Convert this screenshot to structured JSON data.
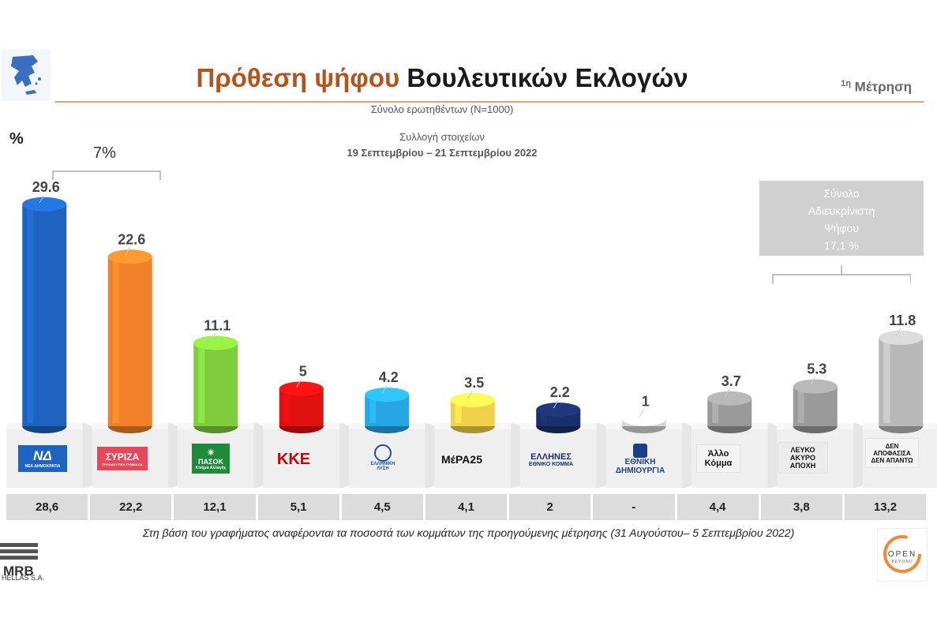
{
  "header": {
    "title_part1": "Πρόθεση ψήφου",
    "title_part2": "Βουλευτικών Εκλογών",
    "measure_sup": "1η",
    "measure_text": "Μέτρηση",
    "subtitle_sample": "Σύνολο ερωτηθέντων (N=1000)",
    "subtitle_collection": "Συλλογή στοιχείων",
    "subtitle_dates": "19 Σεπτεμβρίου – 21 Σεπτεμβρίου 2022"
  },
  "annotations": {
    "percent_symbol": "%",
    "gap_label": "7%",
    "undecided_line1": "Σύνολο",
    "undecided_line2": "Αδιευκρίνιστη",
    "undecided_line3": "Ψήφου",
    "undecided_line4": "17,1 %"
  },
  "chart_data": {
    "type": "bar",
    "categories": [
      "ΝΔ",
      "ΣΥΡΙΖΑ",
      "ΠΑΣΟΚ",
      "ΚΚΕ",
      "ΕΛΛΗΝΙΚΗ ΛΥΣΗ",
      "ΜέΡΑ25",
      "ΕΛΛΗΝΕΣ",
      "ΕΘΝΙΚΗ ΔΗΜΙΟΥΡΓΙΑ",
      "Άλλο Κόμμα",
      "ΛΕΥΚΟ ΑΚΥΡΟ ΑΠΟΧΗ",
      "ΔΕΝ ΑΠΟΦΑΣΙΣΑ ΔΕΝ ΑΠΑΝΤΩ"
    ],
    "values": [
      29.6,
      22.6,
      11.1,
      5,
      4.2,
      3.5,
      2.2,
      1,
      3.7,
      5.3,
      11.8
    ],
    "value_labels": [
      "29.6",
      "22.6",
      "11.1",
      "5",
      "4.2",
      "3.5",
      "2.2",
      "1",
      "3.7",
      "5.3",
      "11.8"
    ],
    "previous_labels": [
      "28,6",
      "22,2",
      "12,1",
      "5,1",
      "4,5",
      "4,1",
      "2",
      "-",
      "4,4",
      "3,8",
      "13,2"
    ],
    "colors": [
      "#1f63c0",
      "#f0802a",
      "#7fcc3c",
      "#e01010",
      "#27a6e6",
      "#f0d24a",
      "#1a2f6b",
      "#d8d8d8",
      "#9a9a9a",
      "#9a9a9a",
      "#b8b8b8"
    ],
    "ylim": [
      0,
      30
    ]
  },
  "logos": {
    "nd_main": "ΝΔ",
    "nd_sub": "ΝΕΑ ΔΗΜΟΚΡΑΤΙΑ",
    "syriza_main": "ΣΥΡΙΖΑ",
    "syriza_sub": "ΠΡΟΟΔΕΥΤΙΚΗ ΣΥΜΜΑΧΙΑ",
    "pasok_main": "ΠΑΣΟΚ",
    "pasok_sub": "Κίνημα Αλλαγής",
    "kke": "ΚΚΕ",
    "el_lysi": "ΕΛΛΗΝΙΚΗ ΛΥΣΗ",
    "mera25": "ΜέΡΑ25",
    "ellines_main": "ΕΛΛΗΝΕΣ",
    "ellines_sub": "ΕΘΝΙΚΟ ΚΟΜΜΑ",
    "ethniki_dim": "ΕΘΝΙΚΗ ΔΗΜΙΟΥΡΓΙΑ",
    "allo": "Άλλο Κόμμα",
    "lefko": "ΛΕΥΚΟ ΑΚΥΡΟ ΑΠΟΧΗ",
    "den": "ΔΕΝ ΑΠΟΦΑΣΙΣΑ ΔΕΝ ΑΠΑΝΤΩ"
  },
  "footer": {
    "footnote": "Στη βάση του γραφήματος αναφέρονται τα ποσοστά των κομμάτων της προηγούμενης μέτρησης (31 Αυγούστου– 5 Σεπτεμβρίου 2022)",
    "mrb_name": "MRB",
    "mrb_sub": "HELLAS S.A.",
    "open_name": "OPEN",
    "open_sub": "BEYOND"
  }
}
